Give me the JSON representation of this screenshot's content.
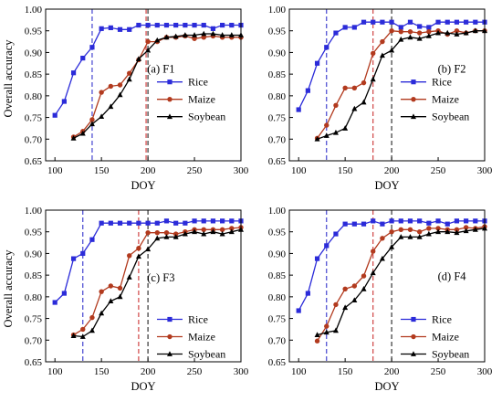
{
  "figure": {
    "ylabel": "Overall accuracy",
    "xlabel": "DOY",
    "legend": [
      "Rice",
      "Maize",
      "Soybean"
    ]
  },
  "chart_data": [
    {
      "type": "line",
      "panel_label": "(a) F1",
      "xlabel": "DOY",
      "ylabel": "Overall accuracy",
      "xlim": [
        90,
        300
      ],
      "ylim": [
        0.65,
        1.0
      ],
      "xticks": [
        100,
        150,
        200,
        250,
        300
      ],
      "yticks": [
        0.65,
        0.7,
        0.75,
        0.8,
        0.85,
        0.9,
        0.95,
        1.0
      ],
      "vlines": [
        {
          "x": 140,
          "color": "#3333cc"
        },
        {
          "x": 198,
          "color": "#cc3333"
        },
        {
          "x": 200,
          "color": "#222222"
        }
      ],
      "series": [
        {
          "name": "Rice",
          "color": "#2b2bd9",
          "marker": "square",
          "x": [
            100,
            110,
            120,
            130,
            140,
            150,
            160,
            170,
            180,
            190,
            200,
            210,
            220,
            230,
            240,
            250,
            260,
            270,
            280,
            290,
            300
          ],
          "y": [
            0.755,
            0.787,
            0.853,
            0.887,
            0.912,
            0.955,
            0.957,
            0.953,
            0.953,
            0.963,
            0.963,
            0.963,
            0.963,
            0.963,
            0.963,
            0.963,
            0.963,
            0.955,
            0.963,
            0.963,
            0.963
          ]
        },
        {
          "name": "Maize",
          "color": "#b23a1e",
          "marker": "circle",
          "x": [
            120,
            130,
            140,
            150,
            160,
            170,
            180,
            190,
            200,
            210,
            220,
            230,
            240,
            250,
            260,
            270,
            280,
            290,
            300
          ],
          "y": [
            0.705,
            0.718,
            0.745,
            0.808,
            0.822,
            0.825,
            0.852,
            0.883,
            0.925,
            0.925,
            0.935,
            0.935,
            0.938,
            0.932,
            0.935,
            0.938,
            0.935,
            0.935,
            0.935
          ]
        },
        {
          "name": "Soybean",
          "color": "#000000",
          "marker": "triangle",
          "x": [
            120,
            130,
            140,
            150,
            160,
            170,
            180,
            190,
            200,
            210,
            220,
            230,
            240,
            250,
            260,
            270,
            280,
            290,
            300
          ],
          "y": [
            0.702,
            0.713,
            0.735,
            0.752,
            0.775,
            0.802,
            0.838,
            0.885,
            0.905,
            0.928,
            0.935,
            0.937,
            0.94,
            0.94,
            0.943,
            0.943,
            0.94,
            0.94,
            0.94
          ]
        }
      ]
    },
    {
      "type": "line",
      "panel_label": "(b) F2",
      "xlabel": "DOY",
      "ylabel": "Overall accuracy",
      "xlim": [
        90,
        300
      ],
      "ylim": [
        0.65,
        1.0
      ],
      "xticks": [
        100,
        150,
        200,
        250,
        300
      ],
      "yticks": [
        0.65,
        0.7,
        0.75,
        0.8,
        0.85,
        0.9,
        0.95,
        1.0
      ],
      "vlines": [
        {
          "x": 130,
          "color": "#3333cc"
        },
        {
          "x": 180,
          "color": "#cc3333"
        },
        {
          "x": 200,
          "color": "#222222"
        }
      ],
      "series": [
        {
          "name": "Rice",
          "color": "#2b2bd9",
          "marker": "square",
          "x": [
            100,
            110,
            120,
            130,
            140,
            150,
            160,
            170,
            180,
            190,
            200,
            210,
            220,
            230,
            240,
            250,
            260,
            270,
            280,
            290,
            300
          ],
          "y": [
            0.768,
            0.812,
            0.875,
            0.912,
            0.945,
            0.958,
            0.958,
            0.97,
            0.97,
            0.97,
            0.97,
            0.958,
            0.97,
            0.96,
            0.958,
            0.97,
            0.97,
            0.97,
            0.97,
            0.97,
            0.97
          ]
        },
        {
          "name": "Maize",
          "color": "#b23a1e",
          "marker": "circle",
          "x": [
            120,
            130,
            140,
            150,
            160,
            170,
            180,
            190,
            200,
            210,
            220,
            230,
            240,
            250,
            260,
            270,
            280,
            290,
            300
          ],
          "y": [
            0.702,
            0.732,
            0.778,
            0.818,
            0.818,
            0.83,
            0.898,
            0.925,
            0.95,
            0.948,
            0.948,
            0.945,
            0.948,
            0.95,
            0.942,
            0.95,
            0.945,
            0.95,
            0.95
          ]
        },
        {
          "name": "Soybean",
          "color": "#000000",
          "marker": "triangle",
          "x": [
            120,
            130,
            140,
            150,
            160,
            170,
            180,
            190,
            200,
            210,
            220,
            230,
            240,
            250,
            260,
            270,
            280,
            290,
            300
          ],
          "y": [
            0.7,
            0.708,
            0.715,
            0.725,
            0.77,
            0.785,
            0.838,
            0.893,
            0.905,
            0.93,
            0.935,
            0.932,
            0.938,
            0.945,
            0.945,
            0.942,
            0.945,
            0.95,
            0.95
          ]
        }
      ]
    },
    {
      "type": "line",
      "panel_label": "(c) F3",
      "xlabel": "DOY",
      "ylabel": "Overall accuracy",
      "xlim": [
        90,
        300
      ],
      "ylim": [
        0.65,
        1.0
      ],
      "xticks": [
        100,
        150,
        200,
        250,
        300
      ],
      "yticks": [
        0.65,
        0.7,
        0.75,
        0.8,
        0.85,
        0.9,
        0.95,
        1.0
      ],
      "vlines": [
        {
          "x": 130,
          "color": "#3333cc"
        },
        {
          "x": 190,
          "color": "#cc3333"
        },
        {
          "x": 200,
          "color": "#222222"
        }
      ],
      "series": [
        {
          "name": "Rice",
          "color": "#2b2bd9",
          "marker": "square",
          "x": [
            100,
            110,
            120,
            130,
            140,
            150,
            160,
            170,
            180,
            190,
            200,
            210,
            220,
            230,
            240,
            250,
            260,
            270,
            280,
            290,
            300
          ],
          "y": [
            0.787,
            0.808,
            0.888,
            0.9,
            0.932,
            0.97,
            0.97,
            0.97,
            0.97,
            0.97,
            0.97,
            0.97,
            0.975,
            0.97,
            0.97,
            0.975,
            0.975,
            0.975,
            0.975,
            0.975,
            0.975
          ]
        },
        {
          "name": "Maize",
          "color": "#b23a1e",
          "marker": "circle",
          "x": [
            120,
            130,
            140,
            150,
            160,
            170,
            180,
            190,
            200,
            210,
            220,
            230,
            240,
            250,
            260,
            270,
            280,
            290,
            300
          ],
          "y": [
            0.712,
            0.725,
            0.752,
            0.812,
            0.825,
            0.82,
            0.895,
            0.912,
            0.948,
            0.948,
            0.948,
            0.945,
            0.95,
            0.955,
            0.955,
            0.955,
            0.955,
            0.958,
            0.96
          ]
        },
        {
          "name": "Soybean",
          "color": "#000000",
          "marker": "triangle",
          "x": [
            120,
            130,
            140,
            150,
            160,
            170,
            180,
            190,
            200,
            210,
            220,
            230,
            240,
            250,
            260,
            270,
            280,
            290,
            300
          ],
          "y": [
            0.71,
            0.708,
            0.722,
            0.762,
            0.79,
            0.8,
            0.845,
            0.893,
            0.91,
            0.935,
            0.938,
            0.938,
            0.945,
            0.95,
            0.945,
            0.95,
            0.945,
            0.95,
            0.955
          ]
        }
      ]
    },
    {
      "type": "line",
      "panel_label": "(d) F4",
      "xlabel": "DOY",
      "ylabel": "Overall accuracy",
      "xlim": [
        90,
        300
      ],
      "ylim": [
        0.65,
        1.0
      ],
      "xticks": [
        100,
        150,
        200,
        250,
        300
      ],
      "yticks": [
        0.65,
        0.7,
        0.75,
        0.8,
        0.85,
        0.9,
        0.95,
        1.0
      ],
      "vlines": [
        {
          "x": 130,
          "color": "#3333cc"
        },
        {
          "x": 180,
          "color": "#cc3333"
        },
        {
          "x": 200,
          "color": "#222222"
        }
      ],
      "series": [
        {
          "name": "Rice",
          "color": "#2b2bd9",
          "marker": "square",
          "x": [
            100,
            110,
            120,
            130,
            140,
            150,
            160,
            170,
            180,
            190,
            200,
            210,
            220,
            230,
            240,
            250,
            260,
            270,
            280,
            290,
            300
          ],
          "y": [
            0.768,
            0.808,
            0.888,
            0.918,
            0.945,
            0.968,
            0.968,
            0.968,
            0.975,
            0.968,
            0.975,
            0.975,
            0.975,
            0.975,
            0.97,
            0.975,
            0.968,
            0.975,
            0.975,
            0.975,
            0.975
          ]
        },
        {
          "name": "Maize",
          "color": "#b23a1e",
          "marker": "circle",
          "x": [
            120,
            130,
            140,
            150,
            160,
            170,
            180,
            190,
            200,
            210,
            220,
            230,
            240,
            250,
            260,
            270,
            280,
            290,
            300
          ],
          "y": [
            0.698,
            0.732,
            0.782,
            0.818,
            0.825,
            0.848,
            0.905,
            0.935,
            0.95,
            0.955,
            0.955,
            0.95,
            0.958,
            0.958,
            0.955,
            0.955,
            0.96,
            0.958,
            0.962
          ]
        },
        {
          "name": "Soybean",
          "color": "#000000",
          "marker": "triangle",
          "x": [
            120,
            130,
            140,
            150,
            160,
            170,
            180,
            190,
            200,
            210,
            220,
            230,
            240,
            250,
            260,
            270,
            280,
            290,
            300
          ],
          "y": [
            0.712,
            0.718,
            0.722,
            0.775,
            0.792,
            0.818,
            0.855,
            0.888,
            0.915,
            0.938,
            0.938,
            0.938,
            0.945,
            0.95,
            0.95,
            0.948,
            0.952,
            0.955,
            0.958
          ]
        }
      ]
    }
  ]
}
